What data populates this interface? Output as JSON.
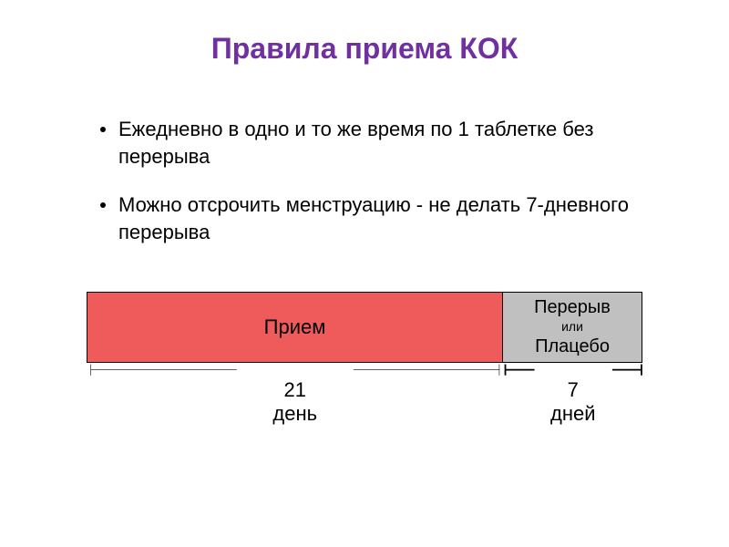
{
  "title": "Правила приема КОК",
  "title_color": "#7030a0",
  "title_fontsize": 32,
  "text_color": "#000000",
  "bullets": [
    "Ежедневно в одно и то же время по 1 таблетке без перерыва",
    "Можно отсрочить менструацию - не делать 7-дневного перерыва"
  ],
  "bullet_fontsize": 22,
  "bar": {
    "segments": [
      {
        "label": "Прием",
        "width_pct": 75,
        "background": "#ef5b5b",
        "fontsize": 22,
        "sublabel": "",
        "sublabel_fontsize": 14,
        "label3": ""
      },
      {
        "label": "Перерыв",
        "sublabel": "или",
        "label3": "Плацебо",
        "width_pct": 25,
        "background": "#c0c0c0",
        "fontsize": 20,
        "sublabel_fontsize": 14
      }
    ]
  },
  "brackets": [
    {
      "width_pct": 75,
      "number": "21",
      "unit": "день"
    },
    {
      "width_pct": 25,
      "number": "7",
      "unit": "дней"
    }
  ],
  "bracket_fontsize": 22,
  "bracket_line_color": "#000000"
}
